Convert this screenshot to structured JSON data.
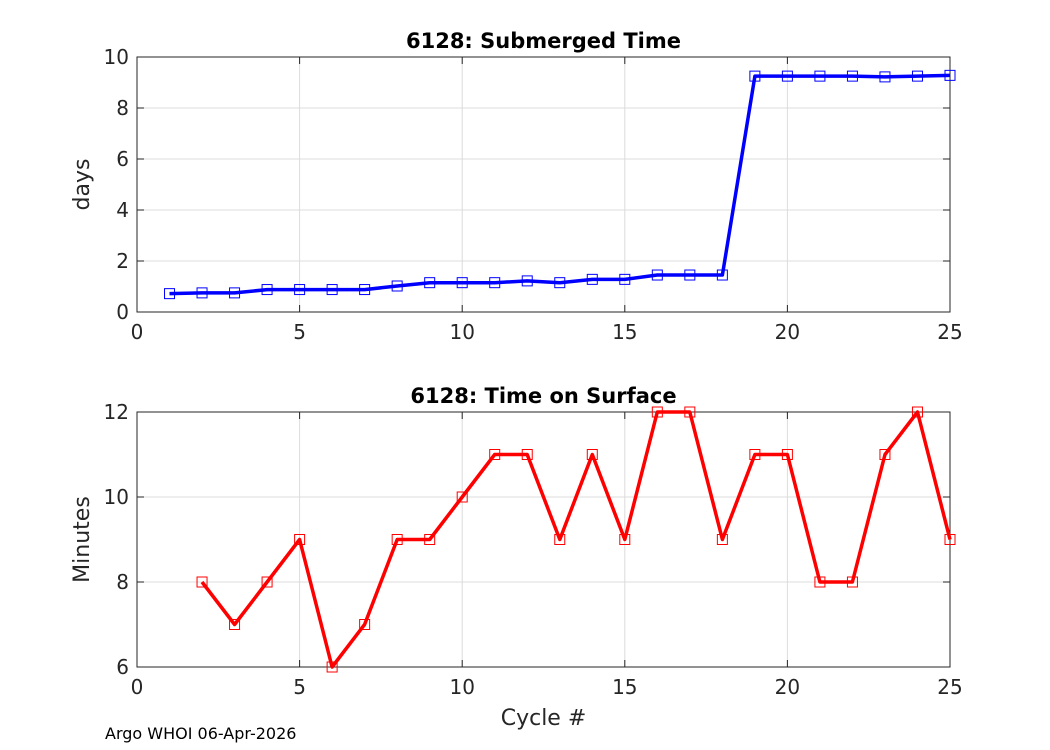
{
  "footer": "Argo WHOI 06-Apr-2026",
  "chart_data": [
    {
      "type": "line",
      "title": "6128: Submerged Time",
      "xlabel": "",
      "ylabel": "days",
      "xlim": [
        0,
        25
      ],
      "ylim": [
        0,
        10
      ],
      "xticks": [
        0,
        5,
        10,
        15,
        20,
        25
      ],
      "yticks": [
        0,
        2,
        4,
        6,
        8,
        10
      ],
      "grid": true,
      "color": "#0000ff",
      "marker": "square",
      "x": [
        1,
        2,
        3,
        4,
        5,
        6,
        7,
        8,
        9,
        10,
        11,
        12,
        13,
        14,
        15,
        16,
        17,
        18,
        19,
        20,
        21,
        22,
        23,
        24,
        25
      ],
      "y": [
        0.72,
        0.75,
        0.75,
        0.88,
        0.88,
        0.88,
        0.88,
        1.02,
        1.15,
        1.15,
        1.15,
        1.22,
        1.15,
        1.28,
        1.28,
        1.45,
        1.45,
        1.45,
        9.25,
        9.25,
        9.25,
        9.25,
        9.22,
        9.25,
        9.28
      ]
    },
    {
      "type": "line",
      "title": "6128: Time on Surface",
      "xlabel": "Cycle #",
      "ylabel": "Minutes",
      "xlim": [
        0,
        25
      ],
      "ylim": [
        6,
        12
      ],
      "xticks": [
        0,
        5,
        10,
        15,
        20,
        25
      ],
      "yticks": [
        6,
        8,
        10,
        12
      ],
      "grid": true,
      "color": "#ff0000",
      "marker": "square",
      "x": [
        2,
        3,
        4,
        5,
        6,
        7,
        8,
        9,
        10,
        11,
        12,
        13,
        14,
        15,
        16,
        17,
        18,
        19,
        20,
        21,
        22,
        23,
        24,
        25
      ],
      "y": [
        8,
        7,
        8,
        9,
        6,
        7,
        9,
        9,
        10,
        11,
        11,
        9,
        11,
        9,
        12,
        12,
        9,
        11,
        11,
        8,
        8,
        11,
        12,
        9
      ]
    }
  ]
}
